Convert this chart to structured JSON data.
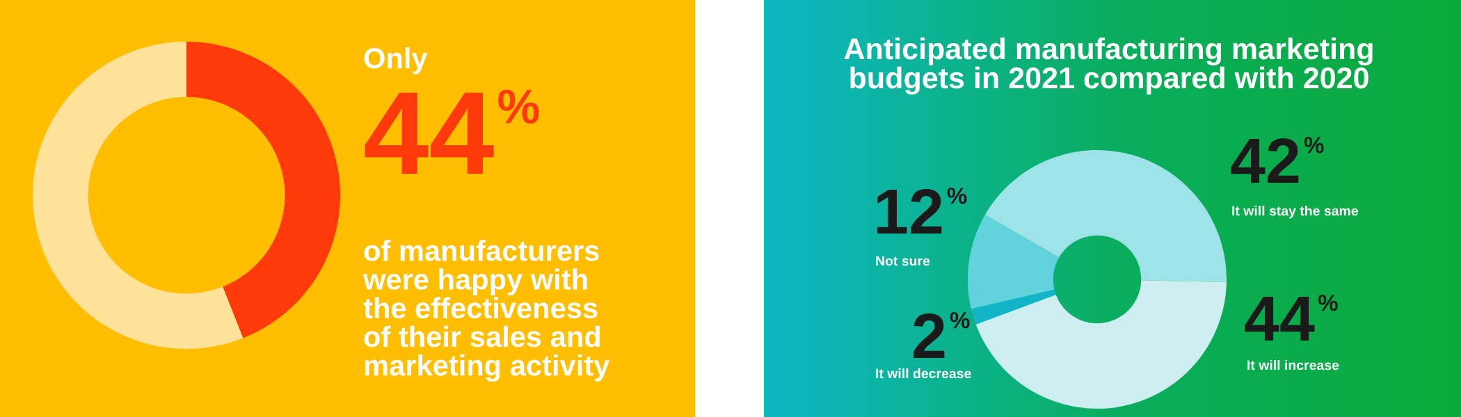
{
  "chart_data": [
    {
      "type": "donut",
      "categories": [
        null,
        null
      ],
      "values": [
        44,
        56
      ],
      "colors": [
        "#ff3a0a",
        "#ffe29a"
      ],
      "value_labels": [
        "44%",
        null
      ],
      "annotations": [
        "Only",
        "of manufacturers\nwere happy with\nthe effectiveness\nof their sales and\nmarketing activity"
      ]
    },
    {
      "type": "donut",
      "title": "Anticipated manufacturing marketing\nbudgets in 2021 compared with 2020",
      "categories": [
        "It will stay the same",
        "It will increase",
        "It will decrease",
        "Not sure"
      ],
      "values": [
        42,
        44,
        2,
        12
      ],
      "colors": [
        "#9ee3e8",
        "#cdeff2",
        "#12b5c8",
        "#62d3dc"
      ],
      "value_labels": [
        "42%",
        "44%",
        "2%",
        "12%"
      ]
    }
  ]
}
